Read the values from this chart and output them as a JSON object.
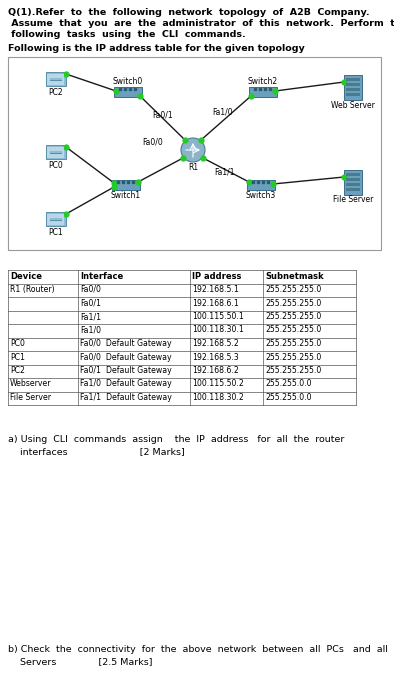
{
  "title_lines": [
    "Q(1).Refer  to  the  following  network  topology  of  A2B  Company.",
    " Assume  that  you  are  the  administrator  of  this  network.  Perform  the",
    " following  tasks  using  the  CLI  commands."
  ],
  "subtitle": "Following is the IP address table for the given topology",
  "table_headers": [
    "Device",
    "Interface",
    "IP address",
    "Subnetmask"
  ],
  "table_rows": [
    [
      "R1 (Router)",
      "Fa0/0",
      "192.168.5.1",
      "255.255.255.0"
    ],
    [
      "",
      "Fa0/1",
      "192.168.6.1",
      "255.255.255.0"
    ],
    [
      "",
      "Fa1/1",
      "100.115.50.1",
      "255.255.255.0"
    ],
    [
      "",
      "Fa1/0",
      "100.118.30.1",
      "255.255.255.0"
    ],
    [
      "PC0",
      "Fa0/0  Default Gateway",
      "192.168.5.2",
      "255.255.255.0"
    ],
    [
      "PC1",
      "Fa0/0  Default Gateway",
      "192.168.5.3",
      "255.255.255.0"
    ],
    [
      "PC2",
      "Fa0/1  Default Gateway",
      "192.168.6.2",
      "255.255.255.0"
    ],
    [
      "Webserver",
      "Fa1/0  Default Gateway",
      "100.115.50.2",
      "255.255.0.0"
    ],
    [
      "File Server",
      "Fa1/1  Default Gateway",
      "100.118.30.2",
      "255.255.0.0"
    ]
  ],
  "part_a_line1": "a) Using  CLI  commands  assign    the  IP  address   for  all  the  router",
  "part_a_line2": "    interfaces                        [2 Marks]",
  "part_b_line1": "b) Check  the  connectivity  for  the  above  network  between  all  PCs   and  all",
  "part_b_line2": "    Servers              [2.5 Marks]",
  "bg_color": "#ffffff"
}
